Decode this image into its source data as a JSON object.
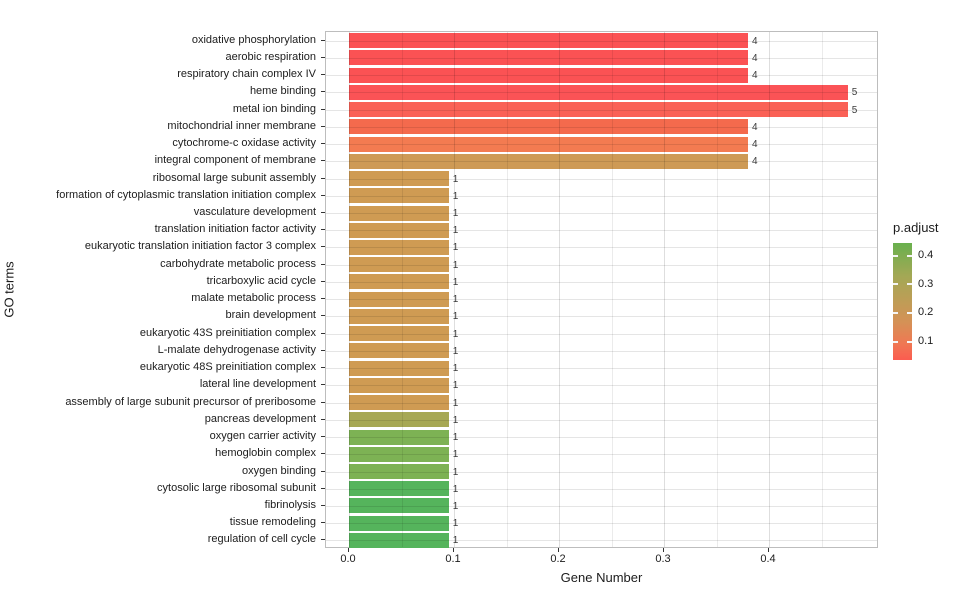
{
  "chart_data": {
    "type": "bar",
    "orientation": "horizontal",
    "xlabel": "Gene Number",
    "ylabel": "GO terms",
    "x_ticks": [
      "0.0",
      "0.1",
      "0.2",
      "0.3",
      "0.4"
    ],
    "x_tick_values": [
      0.0,
      0.1,
      0.2,
      0.3,
      0.4
    ],
    "x_minor_values": [
      0.05,
      0.15,
      0.25,
      0.35,
      0.45
    ],
    "xlim": [
      -0.022,
      0.505
    ],
    "grid": "on",
    "legend": {
      "title": "p.adjust",
      "position": "right",
      "tick_labels": [
        "0.4",
        "0.3",
        "0.2",
        "0.1"
      ],
      "tick_values": [
        0.4,
        0.3,
        0.2,
        0.1
      ],
      "range_top_value": 0.445,
      "range_bottom_value": 0.035,
      "gradient_stops": [
        "#69B04E",
        "#A3A855",
        "#BC9E56",
        "#D59156",
        "#EF7853",
        "#FB5C50"
      ]
    },
    "bars": [
      {
        "label": "oxidative phosphorylation",
        "gene_number": "4",
        "ratio": 0.38,
        "color": "#FB5254"
      },
      {
        "label": "aerobic respiration",
        "gene_number": "4",
        "ratio": 0.38,
        "color": "#FB5254"
      },
      {
        "label": "respiratory chain complex IV",
        "gene_number": "4",
        "ratio": 0.38,
        "color": "#FB5254"
      },
      {
        "label": "heme binding",
        "gene_number": "5",
        "ratio": 0.475,
        "color": "#FB5356"
      },
      {
        "label": "metal ion binding",
        "gene_number": "5",
        "ratio": 0.475,
        "color": "#FA6156"
      },
      {
        "label": "mitochondrial inner membrane",
        "gene_number": "4",
        "ratio": 0.38,
        "color": "#F46A4D"
      },
      {
        "label": "cytochrome-c oxidase activity",
        "gene_number": "4",
        "ratio": 0.38,
        "color": "#F37B51"
      },
      {
        "label": "integral component of membrane",
        "gene_number": "4",
        "ratio": 0.38,
        "color": "#CE9A55"
      },
      {
        "label": "ribosomal large subunit assembly",
        "gene_number": "1",
        "ratio": 0.095,
        "color": "#CF9B53"
      },
      {
        "label": "formation of cytoplasmic translation initiation complex",
        "gene_number": "1",
        "ratio": 0.095,
        "color": "#CF9B53"
      },
      {
        "label": "vasculature development",
        "gene_number": "1",
        "ratio": 0.095,
        "color": "#CF9B53"
      },
      {
        "label": "translation initiation factor activity",
        "gene_number": "1",
        "ratio": 0.095,
        "color": "#CF9B53"
      },
      {
        "label": "eukaryotic translation initiation factor 3 complex",
        "gene_number": "1",
        "ratio": 0.095,
        "color": "#CF9B53"
      },
      {
        "label": "carbohydrate metabolic process",
        "gene_number": "1",
        "ratio": 0.095,
        "color": "#CF9B53"
      },
      {
        "label": "tricarboxylic acid cycle",
        "gene_number": "1",
        "ratio": 0.095,
        "color": "#CF9B53"
      },
      {
        "label": "malate metabolic process",
        "gene_number": "1",
        "ratio": 0.095,
        "color": "#CF9B53"
      },
      {
        "label": "brain development",
        "gene_number": "1",
        "ratio": 0.095,
        "color": "#CF9B53"
      },
      {
        "label": "eukaryotic 43S preinitiation complex",
        "gene_number": "1",
        "ratio": 0.095,
        "color": "#CF9B53"
      },
      {
        "label": "L-malate dehydrogenase activity",
        "gene_number": "1",
        "ratio": 0.095,
        "color": "#CF9B53"
      },
      {
        "label": "eukaryotic 48S preinitiation complex",
        "gene_number": "1",
        "ratio": 0.095,
        "color": "#CF9B53"
      },
      {
        "label": "lateral line development",
        "gene_number": "1",
        "ratio": 0.095,
        "color": "#CF9B53"
      },
      {
        "label": "assembly of large subunit precursor of preribosome",
        "gene_number": "1",
        "ratio": 0.095,
        "color": "#CF9B53"
      },
      {
        "label": "pancreas development",
        "gene_number": "1",
        "ratio": 0.095,
        "color": "#A7A854"
      },
      {
        "label": "oxygen carrier activity",
        "gene_number": "1",
        "ratio": 0.095,
        "color": "#7DB254"
      },
      {
        "label": "hemoglobin complex",
        "gene_number": "1",
        "ratio": 0.095,
        "color": "#7DB254"
      },
      {
        "label": "oxygen binding",
        "gene_number": "1",
        "ratio": 0.095,
        "color": "#7DB254"
      },
      {
        "label": "cytosolic large ribosomal subunit",
        "gene_number": "1",
        "ratio": 0.095,
        "color": "#55B45C"
      },
      {
        "label": "fibrinolysis",
        "gene_number": "1",
        "ratio": 0.095,
        "color": "#55B45C"
      },
      {
        "label": "tissue remodeling",
        "gene_number": "1",
        "ratio": 0.095,
        "color": "#55B45C"
      },
      {
        "label": "regulation of cell cycle",
        "gene_number": "1",
        "ratio": 0.095,
        "color": "#55B45C"
      }
    ]
  }
}
